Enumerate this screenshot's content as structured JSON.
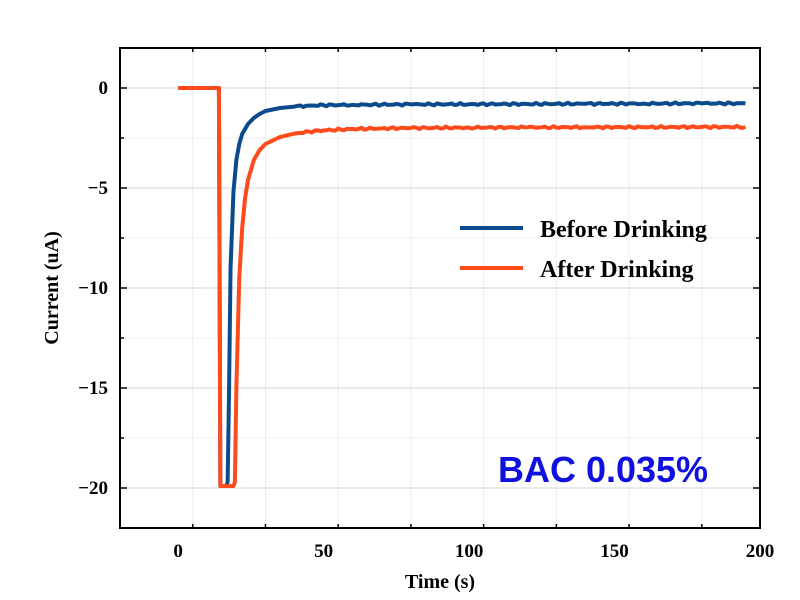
{
  "chart_data": {
    "type": "line",
    "title": "",
    "xlabel": "Time (s)",
    "ylabel": "Current (uA)",
    "xlim": [
      -20,
      200
    ],
    "ylim": [
      -22,
      2
    ],
    "xticks": [
      0,
      50,
      100,
      150,
      200
    ],
    "xtick_labels": [
      "0",
      "50",
      "100",
      "150",
      "200"
    ],
    "yticks": [
      0,
      -5,
      -10,
      -15,
      -20
    ],
    "ytick_labels": [
      "0",
      "−5",
      "−10",
      "−15",
      "−20"
    ],
    "grid": true,
    "legend_position": "center-right",
    "annotation": {
      "text": "BAC 0.035%",
      "color": "#1010e0"
    },
    "series": [
      {
        "name": "Before Drinking",
        "color": "#0b4a8b",
        "x": [
          0,
          14,
          14.5,
          16.5,
          17.0,
          17.5,
          18,
          19,
          20,
          21,
          22,
          24,
          26,
          28,
          30,
          35,
          40,
          45,
          50,
          60,
          70,
          80,
          100,
          120,
          140,
          160,
          180,
          195
        ],
        "y": [
          0,
          0,
          -19.9,
          -19.9,
          -19.7,
          -15,
          -9,
          -5.2,
          -3.6,
          -2.8,
          -2.3,
          -1.8,
          -1.5,
          -1.3,
          -1.15,
          -1.0,
          -0.93,
          -0.88,
          -0.86,
          -0.84,
          -0.83,
          -0.82,
          -0.81,
          -0.8,
          -0.79,
          -0.78,
          -0.77,
          -0.77
        ]
      },
      {
        "name": "After Drinking",
        "color": "#ff4a1c",
        "x": [
          0,
          14,
          14.5,
          19,
          19.5,
          20,
          21,
          22,
          23,
          24,
          26,
          28,
          30,
          35,
          40,
          45,
          50,
          60,
          70,
          80,
          100,
          120,
          140,
          160,
          180,
          195
        ],
        "y": [
          0,
          0,
          -19.9,
          -19.9,
          -19.7,
          -15,
          -9.5,
          -7.0,
          -5.5,
          -4.6,
          -3.6,
          -3.1,
          -2.8,
          -2.45,
          -2.28,
          -2.18,
          -2.12,
          -2.05,
          -2.02,
          -2.0,
          -1.98,
          -1.97,
          -1.96,
          -1.96,
          -1.95,
          -1.95
        ]
      }
    ]
  }
}
